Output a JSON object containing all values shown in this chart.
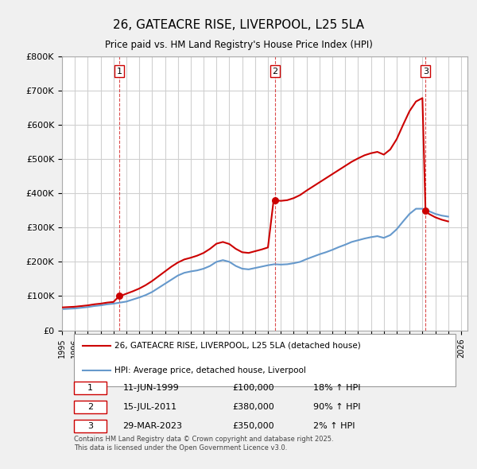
{
  "title": "26, GATEACRE RISE, LIVERPOOL, L25 5LA",
  "subtitle": "Price paid vs. HM Land Registry's House Price Index (HPI)",
  "ylabel": "",
  "ylim": [
    0,
    800000
  ],
  "yticks": [
    0,
    100000,
    200000,
    300000,
    400000,
    500000,
    600000,
    700000,
    800000
  ],
  "ytick_labels": [
    "£0",
    "£100K",
    "£200K",
    "£300K",
    "£400K",
    "£500K",
    "£600K",
    "£700K",
    "£800K"
  ],
  "xlim_start": 1995.0,
  "xlim_end": 2026.5,
  "bg_color": "#f0f0f0",
  "plot_bg_color": "#ffffff",
  "grid_color": "#d0d0d0",
  "red_color": "#cc0000",
  "blue_color": "#6699cc",
  "purchase_dates": [
    1999.44,
    2011.54,
    2023.24
  ],
  "purchase_prices": [
    100000,
    380000,
    350000
  ],
  "purchase_labels": [
    "1",
    "2",
    "3"
  ],
  "legend_label_red": "26, GATEACRE RISE, LIVERPOOL, L25 5LA (detached house)",
  "legend_label_blue": "HPI: Average price, detached house, Liverpool",
  "table_rows": [
    {
      "num": "1",
      "date": "11-JUN-1999",
      "price": "£100,000",
      "hpi": "18% ↑ HPI"
    },
    {
      "num": "2",
      "date": "15-JUL-2011",
      "price": "£380,000",
      "hpi": "90% ↑ HPI"
    },
    {
      "num": "3",
      "date": "29-MAR-2023",
      "price": "£350,000",
      "hpi": "2% ↑ HPI"
    }
  ],
  "footer": "Contains HM Land Registry data © Crown copyright and database right 2025.\nThis data is licensed under the Open Government Licence v3.0.",
  "vline_years": [
    1999.44,
    2011.54,
    2023.24
  ],
  "hpi_years": [
    1995.0,
    1995.5,
    1996.0,
    1996.5,
    1997.0,
    1997.5,
    1998.0,
    1998.5,
    1999.0,
    1999.5,
    2000.0,
    2000.5,
    2001.0,
    2001.5,
    2002.0,
    2002.5,
    2003.0,
    2003.5,
    2004.0,
    2004.5,
    2005.0,
    2005.5,
    2006.0,
    2006.5,
    2007.0,
    2007.5,
    2008.0,
    2008.5,
    2009.0,
    2009.5,
    2010.0,
    2010.5,
    2011.0,
    2011.5,
    2012.0,
    2012.5,
    2013.0,
    2013.5,
    2014.0,
    2014.5,
    2015.0,
    2015.5,
    2016.0,
    2016.5,
    2017.0,
    2017.5,
    2018.0,
    2018.5,
    2019.0,
    2019.5,
    2020.0,
    2020.5,
    2021.0,
    2021.5,
    2022.0,
    2022.5,
    2023.0,
    2023.5,
    2024.0,
    2024.5,
    2025.0
  ],
  "hpi_values": [
    62000,
    63000,
    64000,
    66000,
    68000,
    71000,
    73000,
    76000,
    78000,
    81000,
    84000,
    90000,
    96000,
    103000,
    112000,
    124000,
    136000,
    148000,
    160000,
    168000,
    172000,
    175000,
    180000,
    188000,
    200000,
    205000,
    200000,
    188000,
    180000,
    178000,
    182000,
    186000,
    190000,
    193000,
    192000,
    193000,
    196000,
    200000,
    208000,
    215000,
    222000,
    228000,
    235000,
    243000,
    250000,
    258000,
    263000,
    268000,
    272000,
    275000,
    270000,
    278000,
    295000,
    318000,
    340000,
    355000,
    355000,
    348000,
    340000,
    335000,
    332000
  ],
  "red_years": [
    1995.0,
    1995.5,
    1996.0,
    1996.5,
    1997.0,
    1997.5,
    1998.0,
    1998.5,
    1999.0,
    1999.44,
    1999.5,
    2000.0,
    2000.5,
    2001.0,
    2001.5,
    2002.0,
    2002.5,
    2003.0,
    2003.5,
    2004.0,
    2004.5,
    2005.0,
    2005.5,
    2006.0,
    2006.5,
    2007.0,
    2007.5,
    2008.0,
    2008.5,
    2009.0,
    2009.5,
    2010.0,
    2010.5,
    2011.0,
    2011.44,
    2011.5,
    2012.0,
    2012.5,
    2013.0,
    2013.5,
    2014.0,
    2014.5,
    2015.0,
    2015.5,
    2016.0,
    2016.5,
    2017.0,
    2017.5,
    2018.0,
    2018.5,
    2019.0,
    2019.5,
    2020.0,
    2020.5,
    2021.0,
    2021.5,
    2022.0,
    2022.5,
    2023.0,
    2023.24,
    2023.5,
    2024.0,
    2024.5,
    2025.0
  ],
  "red_values": [
    67000,
    68000,
    69000,
    71000,
    73000,
    76000,
    78000,
    81000,
    83000,
    100000,
    100000,
    107000,
    114000,
    122000,
    132000,
    144000,
    158000,
    172000,
    186000,
    198000,
    207000,
    212000,
    218000,
    226000,
    238000,
    253000,
    258000,
    252000,
    238000,
    228000,
    226000,
    231000,
    236000,
    242000,
    380000,
    380000,
    378000,
    380000,
    386000,
    395000,
    408000,
    420000,
    432000,
    444000,
    456000,
    468000,
    480000,
    492000,
    502000,
    511000,
    517000,
    521000,
    513000,
    528000,
    558000,
    600000,
    640000,
    668000,
    678000,
    350000,
    340000,
    330000,
    323000,
    318000
  ],
  "xlabel_years": [
    1995,
    1996,
    1997,
    1998,
    1999,
    2000,
    2001,
    2002,
    2003,
    2004,
    2005,
    2006,
    2007,
    2008,
    2009,
    2010,
    2011,
    2012,
    2013,
    2014,
    2015,
    2016,
    2017,
    2018,
    2019,
    2020,
    2021,
    2022,
    2023,
    2024,
    2025,
    2026
  ]
}
